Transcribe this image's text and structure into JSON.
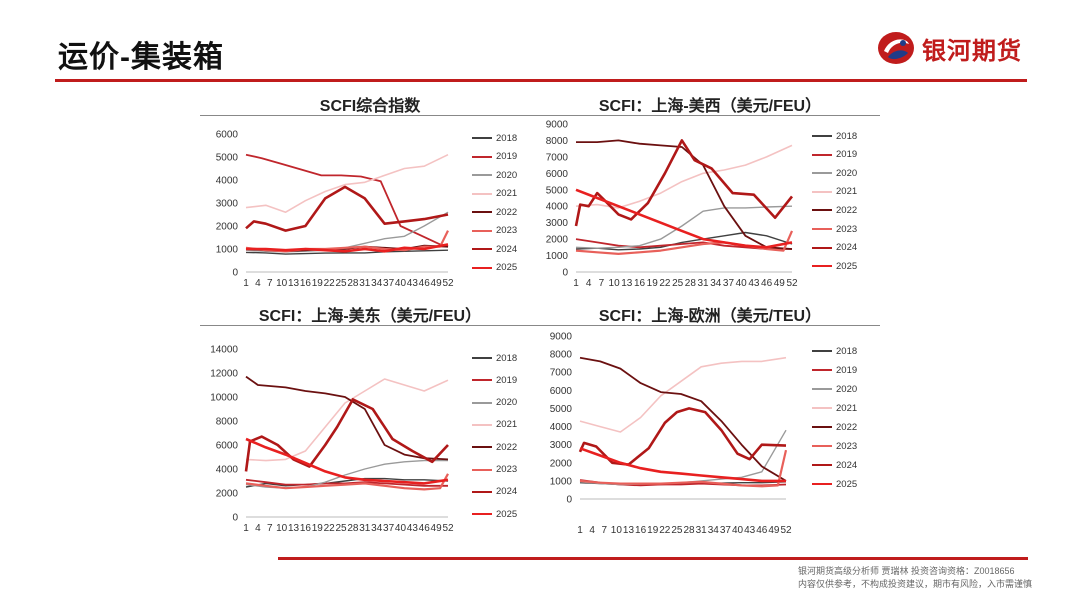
{
  "page": {
    "title": "运价-集装箱",
    "logo_text": "银河期货",
    "disclaimer_line1": "银河期货高级分析师 贾瑞林 投资咨询资格：Z0018656",
    "disclaimer_line2": "内容仅供参考，不构成投资建议，期市有风险，入市需谨慎"
  },
  "colors": {
    "accent": "#c01c1c",
    "2018": "#404040",
    "2019": "#c0262c",
    "2020": "#9a9a9a",
    "2021": "#f4c2c2",
    "2022": "#6b1010",
    "2023": "#e8605a",
    "2024": "#b01818",
    "2025": "#e82020"
  },
  "chart_data": [
    {
      "type": "line",
      "title": "SCFI综合指数",
      "xlabel": "",
      "ylabel": "",
      "ylim": [
        0,
        6000
      ],
      "yticks": [
        0,
        1000,
        2000,
        3000,
        4000,
        5000,
        6000
      ],
      "xticks": [
        "1",
        "4",
        "7",
        "10",
        "13",
        "16",
        "19",
        "22",
        "25",
        "28",
        "31",
        "34",
        "37",
        "40",
        "43",
        "46",
        "49",
        "52"
      ],
      "legend_position": "right",
      "series": [
        {
          "name": "2018",
          "x": [
            1,
            6,
            11,
            16,
            21,
            26,
            31,
            36,
            41,
            46,
            52
          ],
          "values": [
            850,
            830,
            780,
            800,
            820,
            830,
            830,
            880,
            900,
            920,
            950
          ]
        },
        {
          "name": "2019",
          "x": [
            1,
            5,
            10,
            15,
            20,
            25,
            30,
            35,
            40,
            45,
            50,
            52
          ],
          "values": [
            5100,
            4950,
            4700,
            4450,
            4200,
            4200,
            4150,
            3950,
            2000,
            1600,
            1200,
            1100
          ]
        },
        {
          "name": "2020",
          "x": [
            1,
            6,
            11,
            16,
            21,
            26,
            31,
            36,
            41,
            46,
            52
          ],
          "values": [
            950,
            900,
            880,
            900,
            950,
            1050,
            1250,
            1450,
            1550,
            2000,
            2600
          ]
        },
        {
          "name": "2021",
          "x": [
            1,
            6,
            11,
            16,
            21,
            26,
            31,
            36,
            41,
            46,
            52
          ],
          "values": [
            2800,
            2900,
            2600,
            3100,
            3500,
            3800,
            3900,
            4200,
            4500,
            4600,
            5100
          ]
        },
        {
          "name": "2022",
          "x": [
            1,
            6,
            11,
            16,
            21,
            26,
            31,
            36,
            41,
            46,
            52
          ],
          "values": [
            1000,
            950,
            900,
            950,
            1000,
            1000,
            1100,
            1050,
            1000,
            1150,
            1100
          ]
        },
        {
          "name": "2023",
          "x": [
            1,
            6,
            11,
            16,
            21,
            26,
            31,
            36,
            41,
            46,
            50,
            52
          ],
          "values": [
            1050,
            950,
            900,
            1000,
            1000,
            1050,
            1100,
            1000,
            950,
            1100,
            1100,
            1800
          ]
        },
        {
          "name": "2024",
          "x": [
            1,
            3,
            6,
            11,
            16,
            21,
            26,
            31,
            36,
            41,
            46,
            52
          ],
          "values": [
            1900,
            2200,
            2100,
            1800,
            2000,
            3200,
            3700,
            3200,
            2100,
            2200,
            2300,
            2500
          ]
        },
        {
          "name": "2025",
          "x": [
            1,
            6,
            11,
            16,
            21,
            26,
            31,
            36,
            41,
            46,
            52
          ],
          "values": [
            1000,
            1000,
            950,
            1000,
            950,
            900,
            1000,
            900,
            1050,
            1000,
            1200
          ]
        }
      ]
    },
    {
      "type": "line",
      "title": "SCFI：上海-美西（美元/FEU）",
      "xlabel": "",
      "ylabel": "",
      "ylim": [
        0,
        9000
      ],
      "yticks": [
        0,
        1000,
        2000,
        3000,
        4000,
        5000,
        6000,
        7000,
        8000,
        9000
      ],
      "xticks": [
        "1",
        "4",
        "7",
        "10",
        "13",
        "16",
        "19",
        "22",
        "25",
        "28",
        "31",
        "34",
        "37",
        "40",
        "43",
        "46",
        "49",
        "52"
      ],
      "legend_position": "right",
      "series": [
        {
          "name": "2018",
          "x": [
            1,
            6,
            11,
            16,
            21,
            26,
            31,
            36,
            41,
            46,
            52
          ],
          "values": [
            1400,
            1450,
            1350,
            1400,
            1500,
            1800,
            2000,
            2200,
            2400,
            2200,
            1700
          ]
        },
        {
          "name": "2019",
          "x": [
            1,
            6,
            11,
            16,
            21,
            26,
            31,
            36,
            41,
            46,
            52
          ],
          "values": [
            2000,
            1800,
            1600,
            1500,
            1600,
            1700,
            1800,
            1600,
            1500,
            1400,
            1400
          ]
        },
        {
          "name": "2020",
          "x": [
            1,
            6,
            11,
            16,
            21,
            26,
            31,
            36,
            41,
            46,
            52
          ],
          "values": [
            1500,
            1450,
            1500,
            1600,
            2000,
            2800,
            3700,
            3900,
            3900,
            3950,
            4000
          ]
        },
        {
          "name": "2021",
          "x": [
            1,
            6,
            11,
            16,
            21,
            26,
            31,
            36,
            41,
            46,
            52
          ],
          "values": [
            4000,
            4100,
            3900,
            4300,
            4800,
            5500,
            6000,
            6200,
            6500,
            7000,
            7700
          ]
        },
        {
          "name": "2022",
          "x": [
            1,
            6,
            11,
            16,
            21,
            26,
            31,
            36,
            41,
            46,
            52
          ],
          "values": [
            7900,
            7900,
            8000,
            7800,
            7700,
            7600,
            6500,
            4000,
            2200,
            1500,
            1400
          ]
        },
        {
          "name": "2023",
          "x": [
            1,
            6,
            11,
            16,
            21,
            26,
            31,
            36,
            41,
            46,
            50,
            52
          ],
          "values": [
            1300,
            1200,
            1100,
            1200,
            1300,
            1500,
            1700,
            1800,
            1600,
            1400,
            1300,
            2500
          ]
        },
        {
          "name": "2024",
          "x": [
            1,
            2,
            4,
            6,
            8,
            11,
            14,
            18,
            22,
            26,
            29,
            33,
            38,
            43,
            48,
            52
          ],
          "values": [
            2800,
            4100,
            4000,
            4800,
            4300,
            3500,
            3200,
            4200,
            6000,
            8000,
            6800,
            6300,
            4800,
            4700,
            3300,
            4600
          ]
        },
        {
          "name": "2025",
          "x": [
            1,
            6,
            11,
            16,
            21,
            26,
            31,
            36,
            41,
            46,
            52
          ],
          "values": [
            5000,
            4500,
            4000,
            3500,
            3000,
            2500,
            2000,
            1800,
            1600,
            1500,
            1800
          ]
        }
      ]
    },
    {
      "type": "line",
      "title": "SCFI：上海-美东（美元/FEU）",
      "xlabel": "",
      "ylabel": "",
      "ylim": [
        0,
        14000
      ],
      "yticks": [
        0,
        2000,
        4000,
        6000,
        8000,
        10000,
        12000,
        14000
      ],
      "xticks": [
        "1",
        "4",
        "7",
        "10",
        "13",
        "16",
        "19",
        "22",
        "25",
        "28",
        "31",
        "34",
        "37",
        "40",
        "43",
        "46",
        "49",
        "52"
      ],
      "legend_position": "right",
      "series": [
        {
          "name": "2018",
          "x": [
            1,
            6,
            11,
            16,
            21,
            26,
            31,
            36,
            41,
            46,
            52
          ],
          "values": [
            2500,
            2800,
            2600,
            2700,
            2800,
            3000,
            3200,
            3200,
            3100,
            3100,
            3000
          ]
        },
        {
          "name": "2019",
          "x": [
            1,
            6,
            11,
            16,
            21,
            26,
            31,
            36,
            41,
            46,
            52
          ],
          "values": [
            3100,
            2900,
            2700,
            2700,
            2800,
            2800,
            2900,
            2800,
            2700,
            2600,
            2600
          ]
        },
        {
          "name": "2020",
          "x": [
            1,
            6,
            11,
            16,
            21,
            26,
            31,
            36,
            41,
            46,
            52
          ],
          "values": [
            2700,
            2500,
            2400,
            2500,
            2900,
            3500,
            4000,
            4400,
            4600,
            4700,
            4700
          ]
        },
        {
          "name": "2021",
          "x": [
            1,
            6,
            11,
            16,
            21,
            26,
            31,
            36,
            41,
            46,
            52
          ],
          "values": [
            4800,
            4700,
            4800,
            5500,
            7500,
            9500,
            10500,
            11500,
            11000,
            10500,
            11400
          ]
        },
        {
          "name": "2022",
          "x": [
            1,
            4,
            11,
            16,
            21,
            26,
            31,
            36,
            41,
            46,
            52
          ],
          "values": [
            11700,
            11000,
            10800,
            10500,
            10300,
            10000,
            9000,
            6000,
            5200,
            4900,
            4800
          ]
        },
        {
          "name": "2023",
          "x": [
            1,
            6,
            11,
            16,
            21,
            26,
            31,
            36,
            41,
            46,
            50,
            52
          ],
          "values": [
            2800,
            2600,
            2400,
            2500,
            2600,
            2700,
            2800,
            2600,
            2400,
            2300,
            2400,
            3600
          ]
        },
        {
          "name": "2024",
          "x": [
            1,
            2,
            5,
            9,
            13,
            17,
            21,
            24,
            28,
            33,
            38,
            43,
            48,
            52
          ],
          "values": [
            3800,
            6300,
            6700,
            6000,
            4800,
            4200,
            6000,
            7500,
            9800,
            9000,
            6500,
            5500,
            4600,
            6000
          ]
        },
        {
          "name": "2025",
          "x": [
            1,
            6,
            11,
            16,
            21,
            26,
            31,
            36,
            41,
            46,
            52
          ],
          "values": [
            6500,
            5800,
            5200,
            4500,
            3800,
            3300,
            3100,
            3000,
            2900,
            2800,
            3100
          ]
        }
      ]
    },
    {
      "type": "line",
      "title": "SCFI：上海-欧洲（美元/TEU）",
      "xlabel": "",
      "ylabel": "",
      "ylim": [
        0,
        9000
      ],
      "yticks": [
        0,
        1000,
        2000,
        3000,
        4000,
        5000,
        6000,
        7000,
        8000,
        9000
      ],
      "xticks": [
        "1",
        "4",
        "7",
        "10",
        "13",
        "16",
        "19",
        "22",
        "25",
        "28",
        "31",
        "34",
        "37",
        "40",
        "43",
        "46",
        "49",
        "52"
      ],
      "legend_position": "right",
      "series": [
        {
          "name": "2018",
          "x": [
            1,
            6,
            11,
            16,
            21,
            26,
            31,
            36,
            41,
            46,
            52
          ],
          "values": [
            900,
            850,
            800,
            780,
            800,
            850,
            850,
            880,
            900,
            900,
            950
          ]
        },
        {
          "name": "2019",
          "x": [
            1,
            6,
            11,
            16,
            21,
            26,
            31,
            36,
            41,
            46,
            52
          ],
          "values": [
            1050,
            900,
            800,
            750,
            800,
            800,
            850,
            800,
            750,
            750,
            800
          ]
        },
        {
          "name": "2020",
          "x": [
            1,
            6,
            11,
            16,
            21,
            26,
            31,
            36,
            41,
            46,
            52
          ],
          "values": [
            950,
            850,
            800,
            820,
            850,
            900,
            1000,
            1100,
            1200,
            1500,
            3800
          ]
        },
        {
          "name": "2021",
          "x": [
            1,
            6,
            11,
            16,
            21,
            26,
            31,
            36,
            41,
            46,
            52
          ],
          "values": [
            4300,
            4000,
            3700,
            4500,
            5700,
            6500,
            7300,
            7500,
            7600,
            7600,
            7800
          ]
        },
        {
          "name": "2022",
          "x": [
            1,
            6,
            11,
            16,
            21,
            26,
            31,
            36,
            41,
            46,
            52
          ],
          "values": [
            7800,
            7600,
            7200,
            6400,
            5900,
            5800,
            5400,
            4300,
            3000,
            1800,
            1000
          ]
        },
        {
          "name": "2023",
          "x": [
            1,
            6,
            11,
            16,
            21,
            26,
            31,
            36,
            41,
            46,
            50,
            52
          ],
          "values": [
            1000,
            900,
            850,
            850,
            850,
            900,
            950,
            850,
            750,
            700,
            750,
            2700
          ]
        },
        {
          "name": "2024",
          "x": [
            1,
            2,
            5,
            9,
            13,
            18,
            22,
            25,
            28,
            32,
            36,
            40,
            43,
            46,
            52
          ],
          "values": [
            2600,
            3100,
            2900,
            2000,
            1900,
            2800,
            4200,
            4800,
            5000,
            4800,
            3800,
            2500,
            2200,
            3000,
            2950
          ]
        },
        {
          "name": "2025",
          "x": [
            1,
            6,
            11,
            16,
            21,
            26,
            31,
            36,
            41,
            46,
            52
          ],
          "values": [
            2800,
            2400,
            2000,
            1700,
            1500,
            1400,
            1300,
            1200,
            1100,
            1000,
            1000
          ]
        }
      ]
    }
  ]
}
